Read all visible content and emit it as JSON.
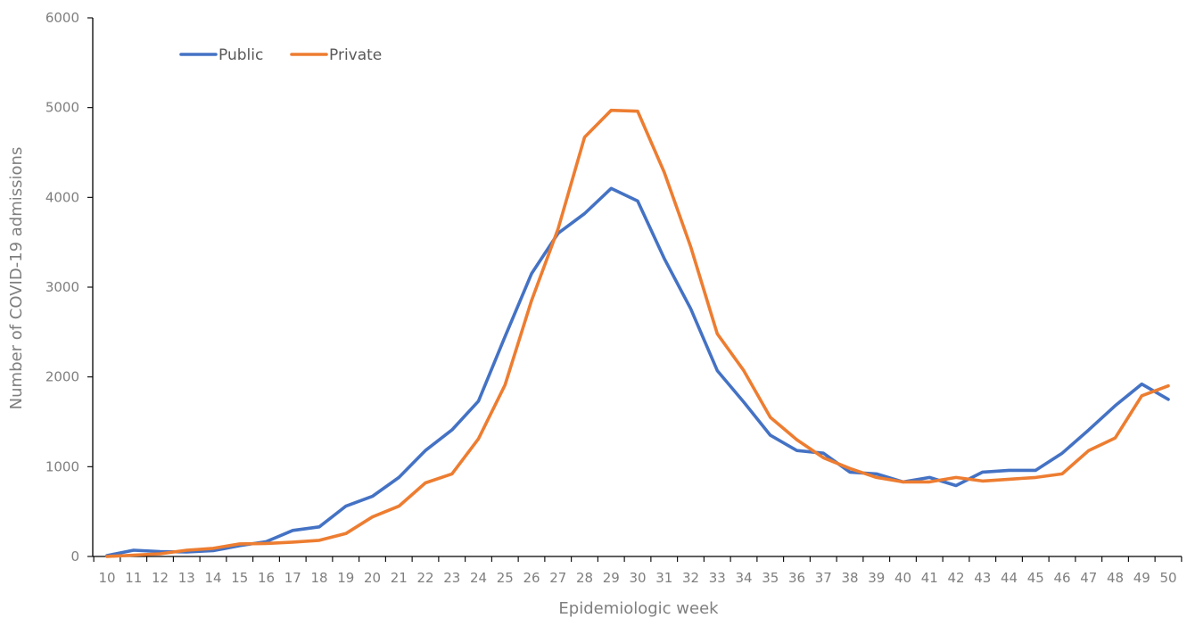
{
  "chart_data": {
    "type": "line",
    "title": "",
    "xlabel": "Epidemiologic week",
    "ylabel": "Number of COVID-19 admissions",
    "ylim": [
      0,
      6000
    ],
    "yticks": [
      "0",
      "1000",
      "2000",
      "3000",
      "4000",
      "5000",
      "6000"
    ],
    "grid": false,
    "legend_position": "top-left",
    "categories": [
      "10",
      "11",
      "12",
      "13",
      "14",
      "15",
      "16",
      "17",
      "18",
      "19",
      "20",
      "21",
      "22",
      "23",
      "24",
      "25",
      "26",
      "27",
      "28",
      "29",
      "30",
      "31",
      "32",
      "33",
      "34",
      "35",
      "36",
      "37",
      "38",
      "39",
      "40",
      "41",
      "42",
      "43",
      "44",
      "45",
      "46",
      "47",
      "48",
      "49",
      "50"
    ],
    "series": [
      {
        "name": "Public",
        "color": "#4472c4",
        "values": [
          10,
          70,
          55,
          50,
          65,
          120,
          165,
          290,
          330,
          560,
          670,
          880,
          1180,
          1410,
          1730,
          2450,
          3150,
          3600,
          3820,
          4100,
          3960,
          3320,
          2760,
          2070,
          1720,
          1350,
          1180,
          1150,
          940,
          920,
          830,
          880,
          790,
          940,
          960,
          960,
          1150,
          1410,
          1680,
          1920,
          1750
        ]
      },
      {
        "name": "Private",
        "color": "#ed7d31",
        "values": [
          0,
          15,
          30,
          70,
          90,
          140,
          145,
          160,
          180,
          255,
          440,
          560,
          820,
          920,
          1310,
          1910,
          2850,
          3650,
          4670,
          4970,
          4960,
          4280,
          3450,
          2480,
          2070,
          1550,
          1300,
          1100,
          980,
          880,
          830,
          830,
          880,
          840,
          860,
          880,
          920,
          1180,
          1320,
          1790,
          1900
        ]
      }
    ]
  }
}
